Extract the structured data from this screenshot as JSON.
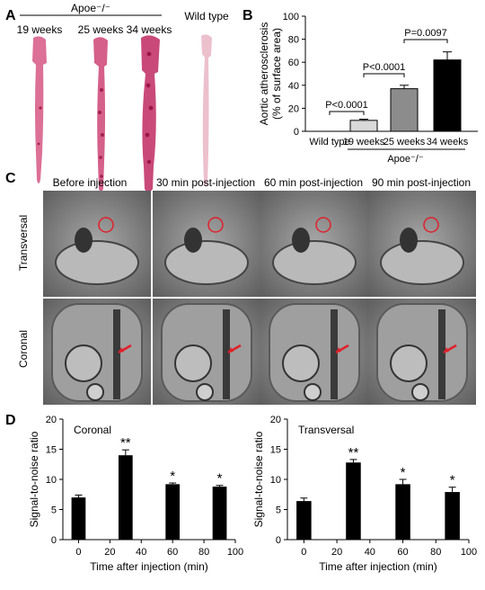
{
  "panels": {
    "a": "A",
    "b": "B",
    "c": "C",
    "d": "D"
  },
  "panel_a": {
    "group_label": "Apoe⁻/⁻",
    "samples": [
      "19 weeks",
      "25 weeks",
      "34 weeks",
      "Wild type"
    ]
  },
  "panel_c": {
    "columns": [
      "Before injection",
      "30 min post-injection",
      "60 min post-injection",
      "90 min post-injection"
    ],
    "rows": [
      "Transversal",
      "Coronal"
    ]
  },
  "colors": {
    "aorta_pink": "#d95f86",
    "plaque_dark": "#b2245a",
    "wild_pale": "#ecc3cf",
    "mri_bg": "#8a8a8a",
    "bar_light": "#d9d9d9",
    "bar_mid": "#8c8c8c",
    "bar_dark": "#000000",
    "red_marker": "#e0202a"
  },
  "chart_data": [
    {
      "id": "B",
      "type": "bar",
      "categories": [
        "Wild type",
        "19 weeks",
        "25 weeks",
        "34 weeks"
      ],
      "values": [
        0,
        9.5,
        37,
        62
      ],
      "errors": [
        0,
        1,
        3,
        7
      ],
      "ylabel": "Aortic atherosclerosis\n(% of surface area)",
      "ylabel_lines": [
        "Aortic atherosclerosis",
        "(% of surface area)"
      ],
      "ylim": [
        0,
        100
      ],
      "yticks": [
        0,
        20,
        40,
        60,
        80,
        100
      ],
      "group_label": "Apoe⁻/⁻",
      "comparisons": [
        {
          "from": 0,
          "to": 1,
          "label": "P<0.0001"
        },
        {
          "from": 1,
          "to": 2,
          "label": "P<0.0001"
        },
        {
          "from": 2,
          "to": 3,
          "label": "P=0.0097"
        }
      ]
    },
    {
      "id": "D-coronal",
      "type": "bar",
      "title": "Coronal",
      "x": [
        0,
        30,
        60,
        90
      ],
      "values": [
        7,
        14,
        9.2,
        8.8
      ],
      "errors": [
        0.4,
        0.9,
        0.2,
        0.2
      ],
      "significance": [
        "",
        "**",
        "*",
        "*"
      ],
      "xlabel": "Time after injection (min)",
      "ylabel": "Signal-to-noise ratio",
      "xlim": [
        -10,
        100
      ],
      "ylim": [
        0,
        20
      ],
      "xticks": [
        0,
        20,
        40,
        60,
        80,
        100
      ],
      "yticks": [
        0,
        5,
        10,
        15,
        20
      ]
    },
    {
      "id": "D-transversal",
      "type": "bar",
      "title": "Transversal",
      "x": [
        0,
        30,
        60,
        90
      ],
      "values": [
        6.4,
        12.8,
        9.2,
        7.9
      ],
      "errors": [
        0.5,
        0.5,
        0.8,
        0.8
      ],
      "significance": [
        "",
        "**",
        "*",
        "*"
      ],
      "xlabel": "Time after injection (min)",
      "ylabel": "Signal-to-noise ratio",
      "xlim": [
        -10,
        100
      ],
      "ylim": [
        0,
        20
      ],
      "xticks": [
        0,
        20,
        40,
        60,
        80,
        100
      ],
      "yticks": [
        0,
        5,
        10,
        15,
        20
      ]
    }
  ]
}
